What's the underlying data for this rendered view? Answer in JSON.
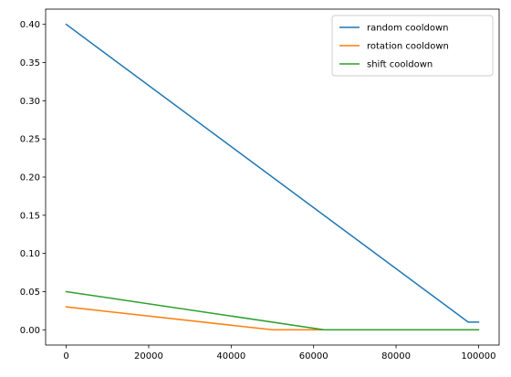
{
  "chart_data": {
    "type": "line",
    "title": "",
    "xlabel": "",
    "ylabel": "",
    "xlim": [
      -5000,
      105000
    ],
    "ylim": [
      -0.02,
      0.42
    ],
    "x_ticks": [
      0,
      20000,
      40000,
      60000,
      80000,
      100000
    ],
    "x_tick_labels": [
      "0",
      "20000",
      "40000",
      "60000",
      "80000",
      "100000"
    ],
    "y_ticks": [
      0.0,
      0.05,
      0.1,
      0.15,
      0.2,
      0.25,
      0.3,
      0.35,
      0.4
    ],
    "y_tick_labels": [
      "0.00",
      "0.05",
      "0.10",
      "0.15",
      "0.20",
      "0.25",
      "0.30",
      "0.35",
      "0.40"
    ],
    "grid": false,
    "legend_position": "upper-right",
    "series": [
      {
        "name": "random cooldown",
        "color": "#1f77b4",
        "x": [
          0,
          97500,
          100000
        ],
        "y": [
          0.4,
          0.01,
          0.01
        ]
      },
      {
        "name": "rotation cooldown",
        "color": "#ff7f0e",
        "x": [
          0,
          50000,
          100000
        ],
        "y": [
          0.03,
          0.0,
          0.0
        ]
      },
      {
        "name": "shift cooldown",
        "color": "#2ca02c",
        "x": [
          0,
          62500,
          100000
        ],
        "y": [
          0.05,
          0.0,
          0.0
        ]
      }
    ]
  }
}
